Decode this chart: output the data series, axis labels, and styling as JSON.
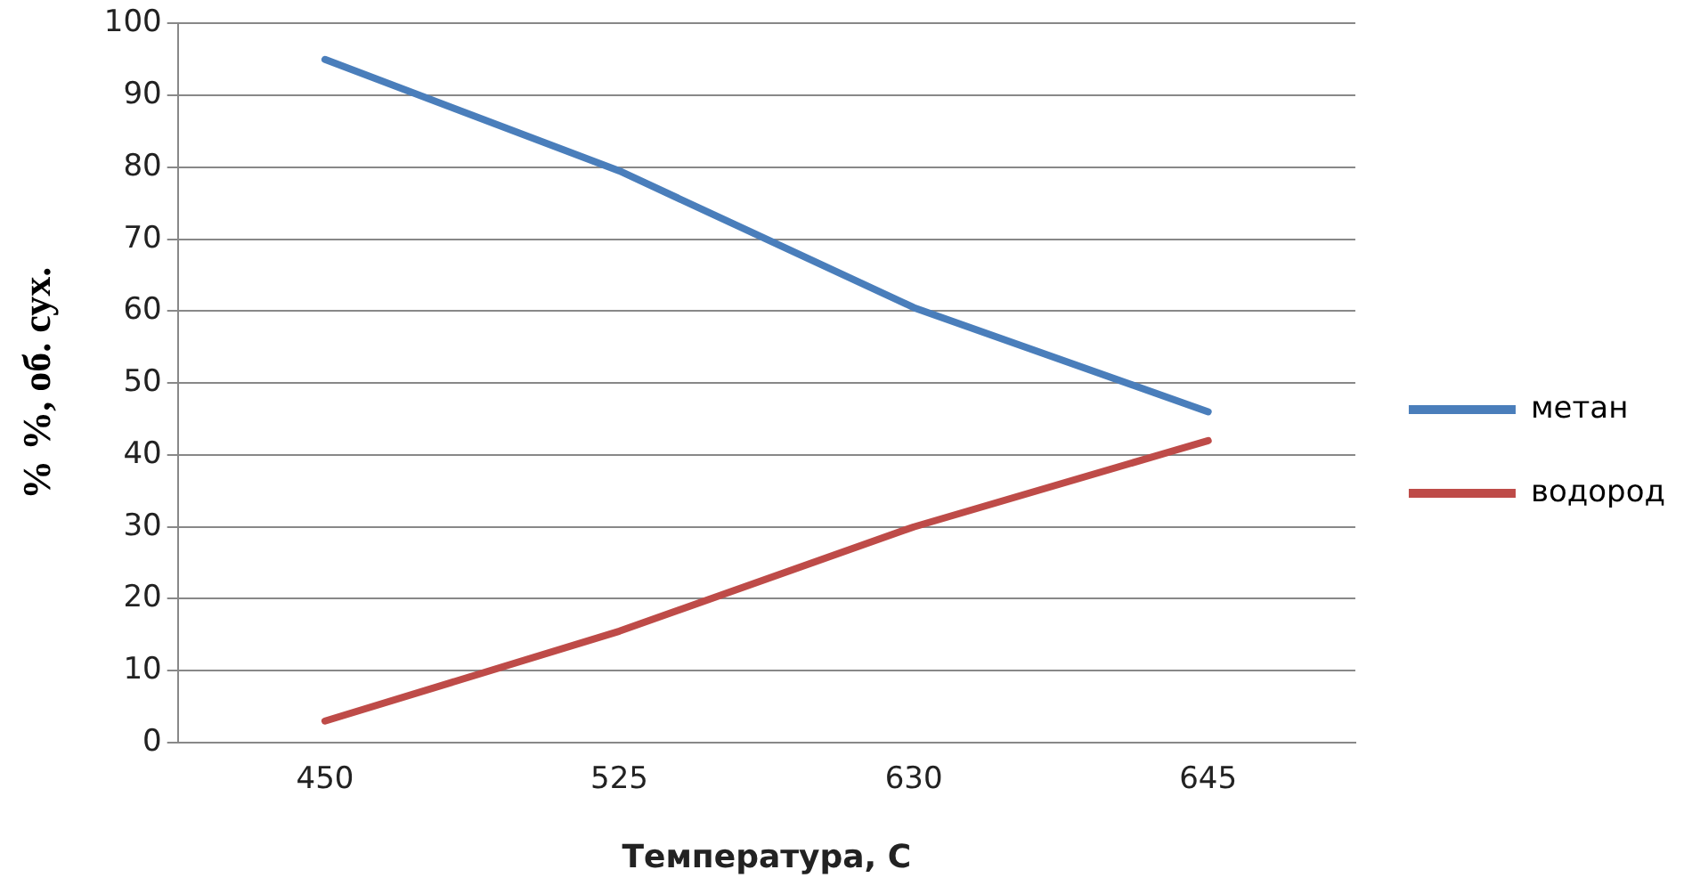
{
  "chart_data": {
    "type": "line",
    "xlabel": "Температура, С",
    "ylabel": "% %, об. сух.",
    "categories": [
      "450",
      "525",
      "630",
      "645"
    ],
    "series": [
      {
        "name": "метан",
        "color": "#4a7ebb",
        "values": [
          95,
          79.5,
          60.5,
          46
        ]
      },
      {
        "name": "водород",
        "color": "#be4b48",
        "values": [
          3,
          15.5,
          30,
          42
        ]
      }
    ],
    "ylim": [
      0,
      100
    ],
    "yticks": [
      0,
      10,
      20,
      30,
      40,
      50,
      60,
      70,
      80,
      90,
      100
    ],
    "grid": "y",
    "legend": "right",
    "marker": "none",
    "line_style": "solid"
  }
}
